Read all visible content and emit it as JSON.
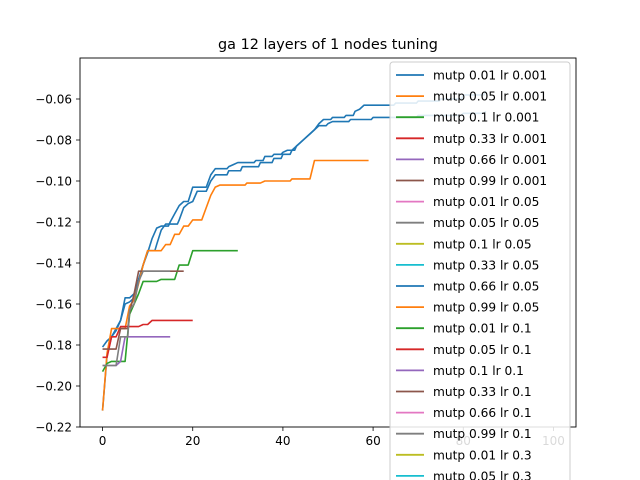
{
  "chart_data": {
    "type": "line",
    "title": "ga 12 layers of 1 nodes tuning",
    "xlabel": "",
    "ylabel": "",
    "xlim": [
      -5,
      105
    ],
    "ylim": [
      -0.22,
      -0.04
    ],
    "xticks": [
      0,
      20,
      40,
      60,
      80,
      100
    ],
    "yticks": [
      -0.22,
      -0.2,
      -0.18,
      -0.16,
      -0.14,
      -0.12,
      -0.1,
      -0.08,
      -0.06
    ],
    "xtick_labels": [
      "0",
      "20",
      "40",
      "60",
      "80",
      "100"
    ],
    "ytick_labels": [
      "−0.22",
      "−0.20",
      "−0.18",
      "−0.16",
      "−0.14",
      "−0.12",
      "−0.10",
      "−0.08",
      "−0.06"
    ],
    "legend_position": "top-right",
    "grid": false,
    "series": [
      {
        "name": "mutp 0.01 lr 0.001",
        "color": "#1f77b4",
        "points": [
          [
            0,
            -0.181
          ],
          [
            1,
            -0.178
          ],
          [
            2,
            -0.176
          ],
          [
            3,
            -0.173
          ],
          [
            4,
            -0.168
          ],
          [
            5,
            -0.157
          ],
          [
            6,
            -0.157
          ],
          [
            7,
            -0.155
          ],
          [
            8,
            -0.148
          ],
          [
            9,
            -0.141
          ],
          [
            10,
            -0.135
          ],
          [
            11,
            -0.128
          ],
          [
            12,
            -0.123
          ],
          [
            13,
            -0.122
          ],
          [
            15,
            -0.12
          ],
          [
            16,
            -0.116
          ],
          [
            17,
            -0.112
          ],
          [
            18,
            -0.11
          ],
          [
            19,
            -0.11
          ],
          [
            20,
            -0.103
          ],
          [
            23,
            -0.103
          ],
          [
            24,
            -0.097
          ],
          [
            25,
            -0.094
          ],
          [
            28,
            -0.093
          ],
          [
            29,
            -0.092
          ],
          [
            30,
            -0.091
          ],
          [
            34,
            -0.09
          ],
          [
            36,
            -0.088
          ],
          [
            38,
            -0.087
          ],
          [
            40,
            -0.086
          ],
          [
            41,
            -0.085
          ],
          [
            43,
            -0.083
          ],
          [
            44,
            -0.081
          ],
          [
            45,
            -0.079
          ],
          [
            46,
            -0.077
          ],
          [
            47,
            -0.075
          ],
          [
            48,
            -0.072
          ],
          [
            49,
            -0.07
          ],
          [
            51,
            -0.069
          ],
          [
            54,
            -0.068
          ],
          [
            56,
            -0.066
          ],
          [
            57,
            -0.065
          ],
          [
            58,
            -0.063
          ],
          [
            62,
            -0.063
          ],
          [
            65,
            -0.062
          ],
          [
            70,
            -0.061
          ],
          [
            75,
            -0.06
          ],
          [
            80,
            -0.058
          ],
          [
            85,
            -0.056
          ]
        ]
      },
      {
        "name": "mutp 0.05 lr 0.001",
        "color": "#ff7f0e",
        "points": []
      },
      {
        "name": "mutp 0.1 lr 0.001",
        "color": "#2ca02c",
        "points": []
      },
      {
        "name": "mutp 0.33 lr 0.001",
        "color": "#d62728",
        "points": []
      },
      {
        "name": "mutp 0.66 lr 0.001",
        "color": "#9467bd",
        "points": []
      },
      {
        "name": "mutp 0.99 lr 0.001",
        "color": "#8c564b",
        "points": []
      },
      {
        "name": "mutp 0.01 lr 0.05",
        "color": "#e377c2",
        "points": []
      },
      {
        "name": "mutp 0.05 lr 0.05",
        "color": "#7f7f7f",
        "points": []
      },
      {
        "name": "mutp 0.1 lr 0.05",
        "color": "#bcbd22",
        "points": []
      },
      {
        "name": "mutp 0.33 lr 0.05",
        "color": "#17becf",
        "points": []
      },
      {
        "name": "mutp 0.66 lr 0.05",
        "color": "#1f77b4",
        "points": [
          [
            0,
            -0.212
          ],
          [
            1,
            -0.185
          ],
          [
            2,
            -0.176
          ],
          [
            3,
            -0.172
          ],
          [
            4,
            -0.168
          ],
          [
            5,
            -0.16
          ],
          [
            6,
            -0.159
          ],
          [
            7,
            -0.157
          ],
          [
            8,
            -0.149
          ],
          [
            9,
            -0.141
          ],
          [
            10,
            -0.134
          ],
          [
            12,
            -0.131
          ],
          [
            13,
            -0.124
          ],
          [
            14,
            -0.121
          ],
          [
            17,
            -0.119
          ],
          [
            18,
            -0.113
          ],
          [
            19,
            -0.111
          ],
          [
            20,
            -0.11
          ],
          [
            21,
            -0.105
          ],
          [
            23,
            -0.105
          ],
          [
            24,
            -0.1
          ],
          [
            25,
            -0.097
          ],
          [
            28,
            -0.095
          ],
          [
            31,
            -0.093
          ],
          [
            35,
            -0.091
          ],
          [
            38,
            -0.089
          ],
          [
            40,
            -0.087
          ],
          [
            42,
            -0.085
          ],
          [
            43,
            -0.083
          ],
          [
            44,
            -0.081
          ],
          [
            45,
            -0.079
          ],
          [
            46,
            -0.077
          ],
          [
            47,
            -0.075
          ],
          [
            48,
            -0.073
          ],
          [
            50,
            -0.072
          ],
          [
            51,
            -0.071
          ],
          [
            55,
            -0.07
          ],
          [
            58,
            -0.07
          ],
          [
            60,
            -0.069
          ],
          [
            65,
            -0.069
          ],
          [
            70,
            -0.068
          ],
          [
            80,
            -0.067
          ],
          [
            85,
            -0.066
          ]
        ]
      },
      {
        "name": "mutp 0.99 lr 0.05",
        "color": "#ff7f0e",
        "points": [
          [
            0,
            -0.212
          ],
          [
            1,
            -0.184
          ],
          [
            2,
            -0.172
          ],
          [
            5,
            -0.172
          ],
          [
            6,
            -0.161
          ],
          [
            7,
            -0.158
          ],
          [
            8,
            -0.15
          ],
          [
            9,
            -0.141
          ],
          [
            10,
            -0.134
          ],
          [
            13,
            -0.134
          ],
          [
            14,
            -0.131
          ],
          [
            15,
            -0.131
          ],
          [
            16,
            -0.126
          ],
          [
            17,
            -0.126
          ],
          [
            18,
            -0.122
          ],
          [
            19,
            -0.122
          ],
          [
            20,
            -0.119
          ],
          [
            22,
            -0.119
          ],
          [
            23,
            -0.113
          ],
          [
            24,
            -0.107
          ],
          [
            25,
            -0.103
          ],
          [
            26,
            -0.102
          ],
          [
            30,
            -0.102
          ],
          [
            32,
            -0.101
          ],
          [
            35,
            -0.101
          ],
          [
            36,
            -0.1
          ],
          [
            40,
            -0.1
          ],
          [
            42,
            -0.099
          ],
          [
            46,
            -0.099
          ],
          [
            47,
            -0.09
          ],
          [
            50,
            -0.09
          ],
          [
            55,
            -0.09
          ],
          [
            59,
            -0.09
          ]
        ]
      },
      {
        "name": "mutp 0.01 lr 0.1",
        "color": "#2ca02c",
        "points": [
          [
            0,
            -0.193
          ],
          [
            1,
            -0.189
          ],
          [
            2,
            -0.188
          ],
          [
            5,
            -0.188
          ],
          [
            6,
            -0.165
          ],
          [
            7,
            -0.16
          ],
          [
            8,
            -0.155
          ],
          [
            9,
            -0.149
          ],
          [
            12,
            -0.149
          ],
          [
            13,
            -0.148
          ],
          [
            16,
            -0.148
          ],
          [
            17,
            -0.141
          ],
          [
            19,
            -0.141
          ],
          [
            20,
            -0.134
          ],
          [
            25,
            -0.134
          ],
          [
            30,
            -0.134
          ]
        ]
      },
      {
        "name": "mutp 0.05 lr 0.1",
        "color": "#d62728",
        "points": [
          [
            0,
            -0.186
          ],
          [
            1,
            -0.186
          ],
          [
            2,
            -0.176
          ],
          [
            3,
            -0.176
          ],
          [
            4,
            -0.171
          ],
          [
            8,
            -0.171
          ],
          [
            9,
            -0.17
          ],
          [
            10,
            -0.17
          ],
          [
            11,
            -0.168
          ],
          [
            15,
            -0.168
          ],
          [
            20,
            -0.168
          ]
        ]
      },
      {
        "name": "mutp 0.1 lr 0.1",
        "color": "#9467bd",
        "points": [
          [
            0,
            -0.19
          ],
          [
            3,
            -0.19
          ],
          [
            4,
            -0.188
          ],
          [
            5,
            -0.176
          ],
          [
            10,
            -0.176
          ],
          [
            15,
            -0.176
          ]
        ]
      },
      {
        "name": "mutp 0.33 lr 0.1",
        "color": "#8c564b",
        "points": [
          [
            0,
            -0.182
          ],
          [
            3,
            -0.182
          ],
          [
            4,
            -0.172
          ],
          [
            6,
            -0.164
          ],
          [
            7,
            -0.155
          ],
          [
            8,
            -0.144
          ],
          [
            12,
            -0.144
          ],
          [
            14,
            -0.144
          ],
          [
            18,
            -0.144
          ]
        ]
      },
      {
        "name": "mutp 0.66 lr 0.1",
        "color": "#e377c2",
        "points": []
      },
      {
        "name": "mutp 0.99 lr 0.1",
        "color": "#7f7f7f",
        "points": [
          [
            0,
            -0.19
          ],
          [
            3,
            -0.19
          ],
          [
            4,
            -0.176
          ],
          [
            6,
            -0.163
          ],
          [
            7,
            -0.16
          ],
          [
            8,
            -0.149
          ],
          [
            9,
            -0.144
          ],
          [
            10,
            -0.144
          ],
          [
            15,
            -0.144
          ]
        ]
      },
      {
        "name": "mutp 0.01 lr 0.3",
        "color": "#bcbd22",
        "points": []
      },
      {
        "name": "mutp 0.05 lr 0.3",
        "color": "#17becf",
        "points": []
      }
    ]
  }
}
